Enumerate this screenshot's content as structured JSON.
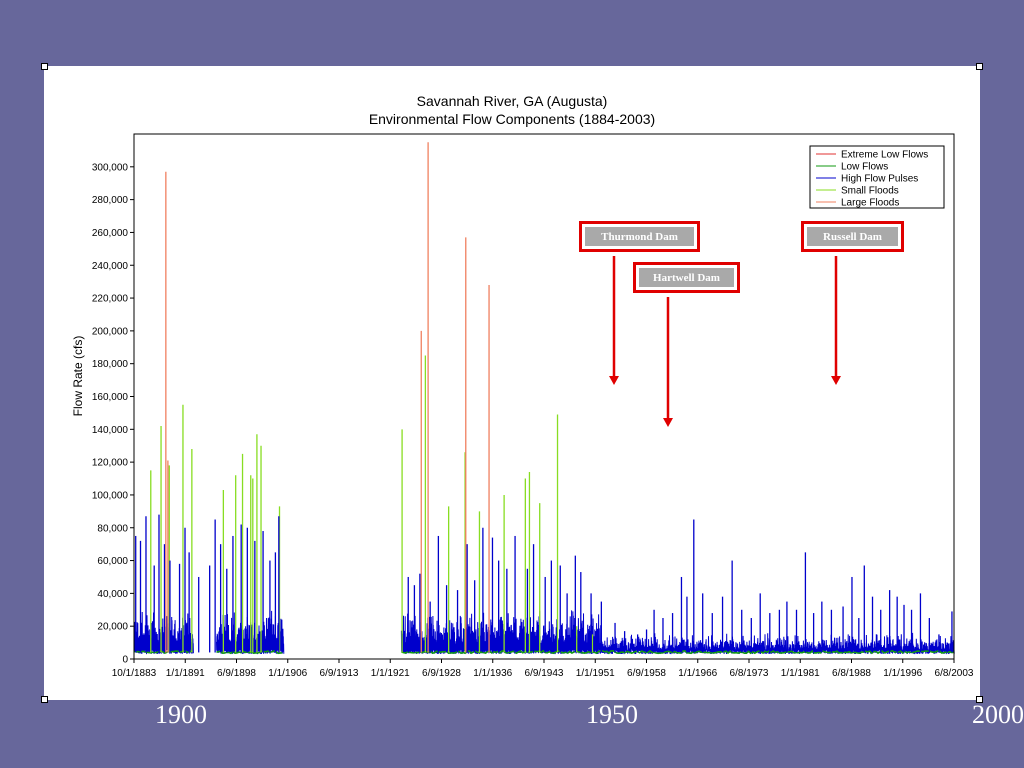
{
  "slide": {
    "background_color": "#67679b",
    "decade_labels": [
      "1900",
      "1950",
      "2000"
    ]
  },
  "annotations": [
    {
      "label": "Thurmond Dam",
      "color": "#e00000"
    },
    {
      "label": "Hartwell Dam",
      "color": "#e00000"
    },
    {
      "label": "Russell Dam",
      "color": "#e00000"
    }
  ],
  "chart_data": {
    "type": "line",
    "title": "Savannah River, GA (Augusta)",
    "subtitle": "Environmental Flow Components (1884-2003)",
    "ylabel": "Flow Rate (cfs)",
    "xlabel": "",
    "ylim": [
      0,
      320000
    ],
    "y_ticks": [
      "0",
      "20,000",
      "40,000",
      "60,000",
      "80,000",
      "100,000",
      "120,000",
      "140,000",
      "160,000",
      "180,000",
      "200,000",
      "220,000",
      "240,000",
      "260,000",
      "280,000",
      "300,000"
    ],
    "x_ticks": [
      "10/1/1883",
      "1/1/1891",
      "6/9/1898",
      "1/1/1906",
      "6/9/1913",
      "1/1/1921",
      "6/9/1928",
      "1/1/1936",
      "6/9/1943",
      "1/1/1951",
      "6/9/1958",
      "1/1/1966",
      "6/8/1973",
      "1/1/1981",
      "6/8/1988",
      "1/1/1996",
      "6/8/2003"
    ],
    "x_range_years": [
      1883.75,
      2003.5
    ],
    "grid": false,
    "legend_position": "top-right",
    "series": [
      {
        "name": "Extreme Low Flows",
        "color": "#e03030"
      },
      {
        "name": "Low Flows",
        "color": "#119911"
      },
      {
        "name": "High Flow Pulses",
        "color": "#0000cc",
        "peaks": [
          [
            1884.0,
            75000
          ],
          [
            1884.7,
            72000
          ],
          [
            1885.5,
            87000
          ],
          [
            1886.7,
            57000
          ],
          [
            1887.4,
            88000
          ],
          [
            1888.2,
            70000
          ],
          [
            1889.0,
            60000
          ],
          [
            1890.4,
            58000
          ],
          [
            1891.2,
            80000
          ],
          [
            1891.8,
            65000
          ],
          [
            1893.2,
            50000
          ],
          [
            1894.8,
            57000
          ],
          [
            1895.6,
            85000
          ],
          [
            1896.4,
            70000
          ],
          [
            1897.3,
            55000
          ],
          [
            1898.2,
            75000
          ],
          [
            1899.4,
            82000
          ],
          [
            1900.3,
            80000
          ],
          [
            1901.4,
            72000
          ],
          [
            1902.6,
            78000
          ],
          [
            1903.6,
            60000
          ],
          [
            1904.4,
            65000
          ],
          [
            1904.9,
            87000
          ],
          [
            1923.8,
            50000
          ],
          [
            1924.7,
            45000
          ],
          [
            1925.5,
            52000
          ],
          [
            1927.0,
            35000
          ],
          [
            1928.2,
            75000
          ],
          [
            1929.4,
            45000
          ],
          [
            1931.0,
            42000
          ],
          [
            1932.4,
            70000
          ],
          [
            1933.5,
            48000
          ],
          [
            1934.7,
            80000
          ],
          [
            1936.1,
            74000
          ],
          [
            1937.0,
            60000
          ],
          [
            1938.2,
            55000
          ],
          [
            1939.4,
            75000
          ],
          [
            1941.2,
            55000
          ],
          [
            1942.1,
            70000
          ],
          [
            1943.8,
            50000
          ],
          [
            1944.7,
            60000
          ],
          [
            1946.0,
            57000
          ],
          [
            1947.0,
            40000
          ],
          [
            1948.2,
            63000
          ],
          [
            1949.0,
            53000
          ],
          [
            1950.5,
            40000
          ],
          [
            1952.0,
            35000
          ],
          [
            1954.0,
            22000
          ],
          [
            1955.4,
            17000
          ],
          [
            1957.3,
            15000
          ],
          [
            1958.6,
            18000
          ],
          [
            1959.7,
            30000
          ],
          [
            1961.0,
            25000
          ],
          [
            1962.4,
            28000
          ],
          [
            1963.7,
            50000
          ],
          [
            1964.5,
            38000
          ],
          [
            1965.5,
            85000
          ],
          [
            1966.8,
            40000
          ],
          [
            1968.2,
            28000
          ],
          [
            1969.7,
            38000
          ],
          [
            1971.1,
            60000
          ],
          [
            1972.5,
            30000
          ],
          [
            1973.9,
            25000
          ],
          [
            1975.2,
            40000
          ],
          [
            1976.6,
            28000
          ],
          [
            1978.0,
            30000
          ],
          [
            1979.1,
            35000
          ],
          [
            1980.5,
            30000
          ],
          [
            1981.8,
            65000
          ],
          [
            1983.0,
            28000
          ],
          [
            1984.2,
            35000
          ],
          [
            1985.6,
            30000
          ],
          [
            1987.3,
            32000
          ],
          [
            1988.6,
            50000
          ],
          [
            1989.6,
            25000
          ],
          [
            1990.4,
            57000
          ],
          [
            1991.6,
            38000
          ],
          [
            1992.8,
            30000
          ],
          [
            1994.1,
            42000
          ],
          [
            1995.2,
            38000
          ],
          [
            1996.2,
            33000
          ],
          [
            1997.3,
            30000
          ],
          [
            1998.6,
            40000
          ],
          [
            1999.9,
            25000
          ],
          [
            2001.3,
            15000
          ],
          [
            2002.5,
            10000
          ],
          [
            2003.2,
            29000
          ]
        ]
      },
      {
        "name": "Small Floods",
        "color": "#88dd22",
        "peaks": [
          [
            1886.2,
            115000
          ],
          [
            1887.7,
            142000
          ],
          [
            1888.9,
            118000
          ],
          [
            1890.9,
            155000
          ],
          [
            1892.2,
            128000
          ],
          [
            1896.8,
            103000
          ],
          [
            1898.6,
            112000
          ],
          [
            1899.6,
            125000
          ],
          [
            1900.8,
            112000
          ],
          [
            1901.1,
            110000
          ],
          [
            1901.7,
            137000
          ],
          [
            1902.3,
            130000
          ],
          [
            1905.0,
            93000
          ],
          [
            1922.9,
            140000
          ],
          [
            1926.3,
            185000
          ],
          [
            1929.7,
            93000
          ],
          [
            1932.1,
            126000
          ],
          [
            1934.2,
            90000
          ],
          [
            1937.8,
            100000
          ],
          [
            1940.9,
            110000
          ],
          [
            1941.5,
            114000
          ],
          [
            1943.0,
            95000
          ],
          [
            1945.6,
            149000
          ],
          [
            1948.4,
            20000
          ],
          [
            1950.7,
            15000
          ]
        ]
      },
      {
        "name": "Large Floods",
        "color": "#f08060",
        "peaks": [
          [
            1888.4,
            297000
          ],
          [
            1888.7,
            121000
          ],
          [
            1925.7,
            200000
          ],
          [
            1926.7,
            315000
          ],
          [
            1932.2,
            257000
          ],
          [
            1935.6,
            228000
          ]
        ]
      }
    ]
  }
}
